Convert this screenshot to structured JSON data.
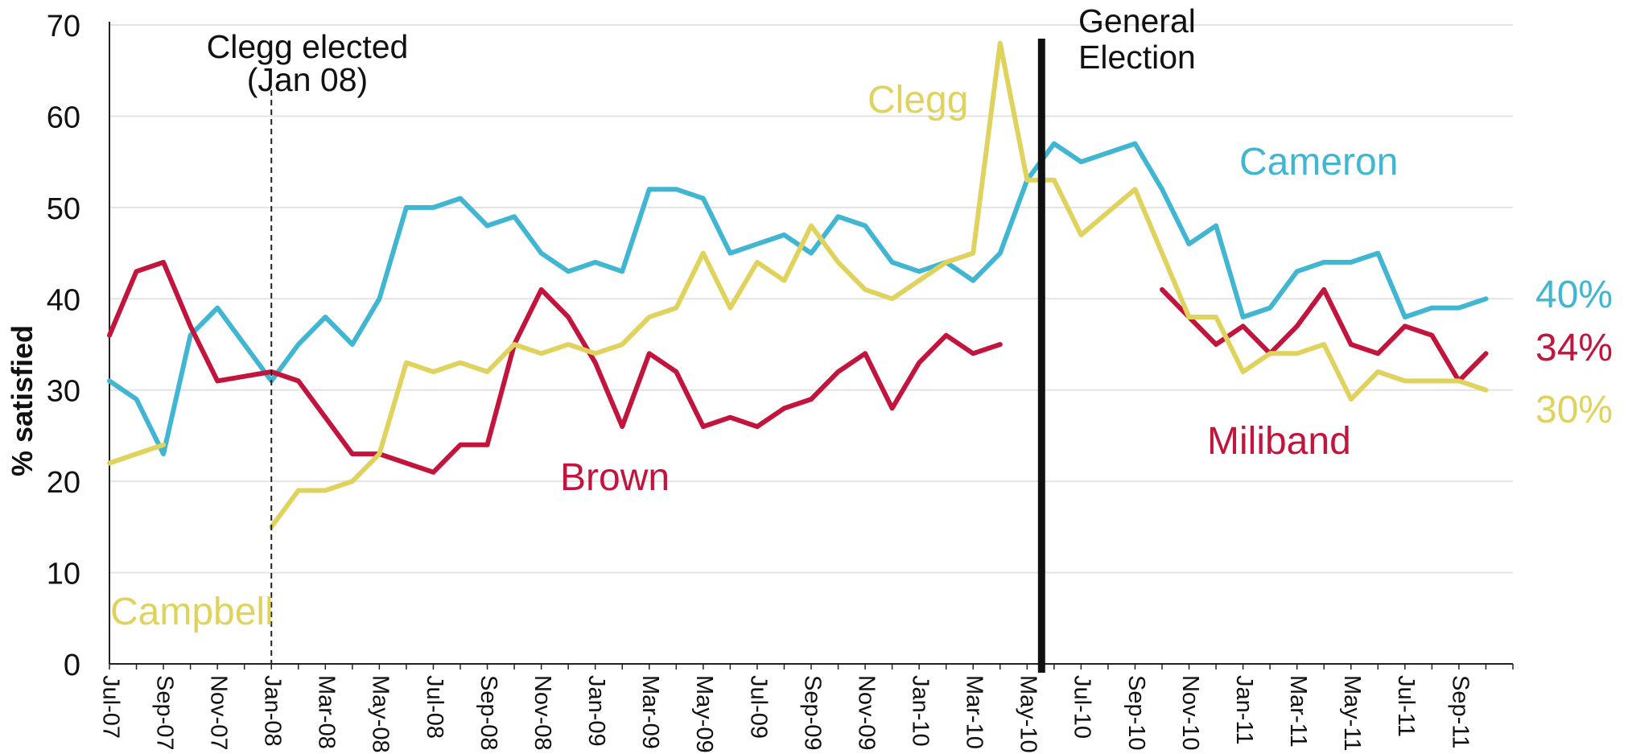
{
  "chart_data": {
    "type": "line",
    "title": "",
    "xlabel": "",
    "ylabel": "% satisfied",
    "ylim": [
      0,
      70
    ],
    "yticks": [
      "0",
      "10",
      "20",
      "30",
      "40",
      "50",
      "60",
      "70"
    ],
    "grid": "horizontal",
    "x_tick_labels": [
      "Jul-07",
      "Sep-07",
      "Nov-07",
      "Jan-08",
      "Mar-08",
      "May-08",
      "Jul-08",
      "Sep-08",
      "Nov-08",
      "Jan-09",
      "Mar-09",
      "May-09",
      "Jul-09",
      "Sep-09",
      "Nov-09",
      "Jan-10",
      "Mar-10",
      "May-10",
      "Jul-10",
      "Sep-10",
      "Nov-10",
      "Jan-11",
      "Mar-11",
      "May-11",
      "Jul-11",
      "Sep-11"
    ],
    "series": [
      {
        "name": "Cameron",
        "color": "#41b6d2",
        "points": [
          [
            "Jul-07",
            31
          ],
          [
            "Aug-07",
            29
          ],
          [
            "Sep-07",
            23
          ],
          [
            "Oct-07",
            36
          ],
          [
            "Nov-07",
            39
          ],
          [
            "Dec-07",
            35
          ],
          [
            "Jan-08",
            31
          ],
          [
            "Feb-08",
            35
          ],
          [
            "Mar-08",
            38
          ],
          [
            "Apr-08",
            35
          ],
          [
            "May-08",
            40
          ],
          [
            "Jun-08",
            50
          ],
          [
            "Jul-08",
            50
          ],
          [
            "Aug-08",
            51
          ],
          [
            "Sep-08",
            48
          ],
          [
            "Oct-08",
            49
          ],
          [
            "Nov-08",
            45
          ],
          [
            "Dec-08",
            43
          ],
          [
            "Jan-09",
            44
          ],
          [
            "Feb-09",
            43
          ],
          [
            "Mar-09",
            52
          ],
          [
            "Apr-09",
            52
          ],
          [
            "May-09",
            51
          ],
          [
            "Jun-09",
            45
          ],
          [
            "Jul-09",
            46
          ],
          [
            "Aug-09",
            47
          ],
          [
            "Sep-09",
            45
          ],
          [
            "Oct-09",
            49
          ],
          [
            "Nov-09",
            48
          ],
          [
            "Dec-09",
            44
          ],
          [
            "Jan-10",
            43
          ],
          [
            "Feb-10",
            44
          ],
          [
            "Mar-10",
            42
          ],
          [
            "Apr-10",
            45
          ],
          [
            "May-10",
            53
          ],
          [
            "Jun-10",
            57
          ],
          [
            "Jul-10",
            55
          ],
          [
            "Aug-10",
            56
          ],
          [
            "Sep-10",
            57
          ],
          [
            "Oct-10",
            52
          ],
          [
            "Nov-10",
            46
          ],
          [
            "Dec-10",
            48
          ],
          [
            "Jan-11",
            38
          ],
          [
            "Feb-11",
            39
          ],
          [
            "Mar-11",
            43
          ],
          [
            "Apr-11",
            44
          ],
          [
            "May-11",
            44
          ],
          [
            "Jun-11",
            45
          ],
          [
            "Jul-11",
            38
          ],
          [
            "Aug-11",
            39
          ],
          [
            "Sep-11",
            39
          ],
          [
            "Oct-11",
            40
          ]
        ]
      },
      {
        "name": "Brown",
        "color": "#c2143c",
        "points": [
          [
            "Jul-07",
            36
          ],
          [
            "Aug-07",
            43
          ],
          [
            "Sep-07",
            44
          ],
          [
            "Oct-07",
            37
          ],
          [
            "Nov-07",
            31
          ],
          [
            "Dec-07",
            31.5
          ],
          [
            "Jan-08",
            32
          ],
          [
            "Feb-08",
            31
          ],
          [
            "Mar-08",
            27
          ],
          [
            "Apr-08",
            23
          ],
          [
            "May-08",
            23
          ],
          [
            "Jun-08",
            22
          ],
          [
            "Jul-08",
            21
          ],
          [
            "Aug-08",
            24
          ],
          [
            "Sep-08",
            24
          ],
          [
            "Oct-08",
            35
          ],
          [
            "Nov-08",
            41
          ],
          [
            "Dec-08",
            38
          ],
          [
            "Jan-09",
            33
          ],
          [
            "Feb-09",
            26
          ],
          [
            "Mar-09",
            34
          ],
          [
            "Apr-09",
            32
          ],
          [
            "May-09",
            26
          ],
          [
            "Jun-09",
            27
          ],
          [
            "Jul-09",
            26
          ],
          [
            "Aug-09",
            28
          ],
          [
            "Sep-09",
            29
          ],
          [
            "Oct-09",
            32
          ],
          [
            "Nov-09",
            34
          ],
          [
            "Dec-09",
            28
          ],
          [
            "Jan-10",
            33
          ],
          [
            "Feb-10",
            36
          ],
          [
            "Mar-10",
            34
          ],
          [
            "Apr-10",
            35
          ]
        ]
      },
      {
        "name": "Miliband",
        "color": "#c2143c",
        "points": [
          [
            "Oct-10",
            41
          ],
          [
            "Nov-10",
            38
          ],
          [
            "Dec-10",
            35
          ],
          [
            "Jan-11",
            37
          ],
          [
            "Feb-11",
            34
          ],
          [
            "Mar-11",
            37
          ],
          [
            "Apr-11",
            41
          ],
          [
            "May-11",
            35
          ],
          [
            "Jun-11",
            34
          ],
          [
            "Jul-11",
            37
          ],
          [
            "Aug-11",
            36
          ],
          [
            "Sep-11",
            31
          ],
          [
            "Oct-11",
            34
          ]
        ]
      },
      {
        "name": "Campbell",
        "color": "#e0d35d",
        "points": [
          [
            "Jul-07",
            22
          ],
          [
            "Aug-07",
            23
          ],
          [
            "Sep-07",
            24
          ]
        ]
      },
      {
        "name": "Clegg",
        "color": "#e0d35d",
        "points": [
          [
            "Jan-08",
            15
          ],
          [
            "Feb-08",
            19
          ],
          [
            "Mar-08",
            19
          ],
          [
            "Apr-08",
            20
          ],
          [
            "May-08",
            23
          ],
          [
            "Jun-08",
            33
          ],
          [
            "Jul-08",
            32
          ],
          [
            "Aug-08",
            33
          ],
          [
            "Sep-08",
            32
          ],
          [
            "Oct-08",
            35
          ],
          [
            "Nov-08",
            34
          ],
          [
            "Dec-08",
            35
          ],
          [
            "Jan-09",
            34
          ],
          [
            "Feb-09",
            35
          ],
          [
            "Mar-09",
            38
          ],
          [
            "Apr-09",
            39
          ],
          [
            "May-09",
            45
          ],
          [
            "Jun-09",
            39
          ],
          [
            "Jul-09",
            44
          ],
          [
            "Aug-09",
            42
          ],
          [
            "Sep-09",
            48
          ],
          [
            "Oct-09",
            44
          ],
          [
            "Nov-09",
            41
          ],
          [
            "Dec-09",
            40
          ],
          [
            "Jan-10",
            42
          ],
          [
            "Feb-10",
            44
          ],
          [
            "Mar-10",
            45
          ],
          [
            "Apr-10",
            68
          ],
          [
            "May-10",
            53
          ],
          [
            "Jun-10",
            53
          ],
          [
            "Jul-10",
            47
          ],
          [
            "Aug-10",
            49.5
          ],
          [
            "Sep-10",
            52
          ],
          [
            "Oct-10",
            45
          ],
          [
            "Nov-10",
            38
          ],
          [
            "Dec-10",
            38
          ],
          [
            "Jan-11",
            32
          ],
          [
            "Feb-11",
            34
          ],
          [
            "Mar-11",
            34
          ],
          [
            "Apr-11",
            35
          ],
          [
            "May-11",
            29
          ],
          [
            "Jun-11",
            32
          ],
          [
            "Jul-11",
            31
          ],
          [
            "Aug-11",
            31
          ],
          [
            "Sep-11",
            31
          ],
          [
            "Oct-11",
            30
          ]
        ]
      }
    ],
    "series_labels": [
      "Cameron",
      "Brown",
      "Miliband",
      "Campbell",
      "Clegg"
    ],
    "end_labels": [
      {
        "series": "Cameron",
        "text": "40%",
        "color": "#41b6d2"
      },
      {
        "series": "Miliband",
        "text": "34%",
        "color": "#c2143c"
      },
      {
        "series": "Clegg",
        "text": "30%",
        "color": "#e0d35d"
      }
    ],
    "annotations": [
      {
        "type": "vline",
        "style": "dashed",
        "at": "Jan-08",
        "lines": [
          "Clegg elected",
          "(Jan 08)"
        ]
      },
      {
        "type": "vline",
        "style": "solid",
        "at": "May-10",
        "lines": [
          "General",
          "Election"
        ]
      }
    ]
  }
}
